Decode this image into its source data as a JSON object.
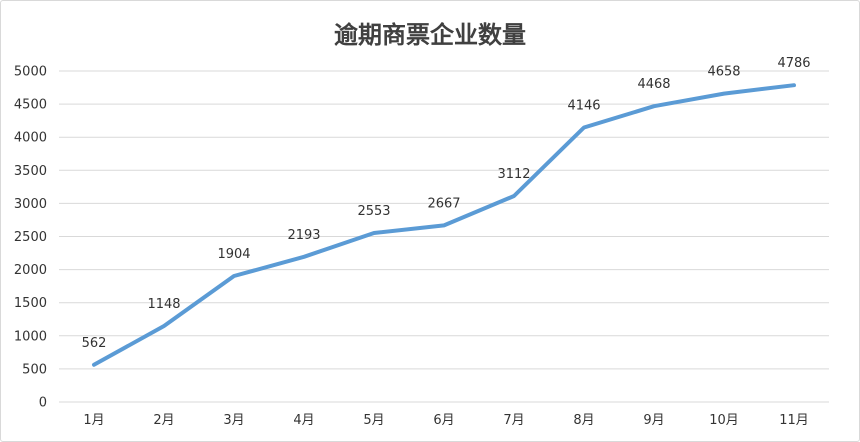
{
  "chart_data": {
    "type": "line",
    "title": "逾期商票企业数量",
    "categories": [
      "1月",
      "2月",
      "3月",
      "4月",
      "5月",
      "6月",
      "7月",
      "8月",
      "9月",
      "10月",
      "11月"
    ],
    "series": [
      {
        "values": [
          562,
          1148,
          1904,
          2193,
          2553,
          2667,
          3112,
          4146,
          4468,
          4658,
          4786
        ]
      }
    ],
    "ylim": [
      0,
      5000
    ],
    "yticks": [
      0,
      500,
      1000,
      1500,
      2000,
      2500,
      3000,
      3500,
      4000,
      4500,
      5000
    ],
    "grid": true,
    "legend": "none",
    "data_labels": true,
    "line_color": "#5b9bd5",
    "grid_color": "#d9d9d9"
  }
}
